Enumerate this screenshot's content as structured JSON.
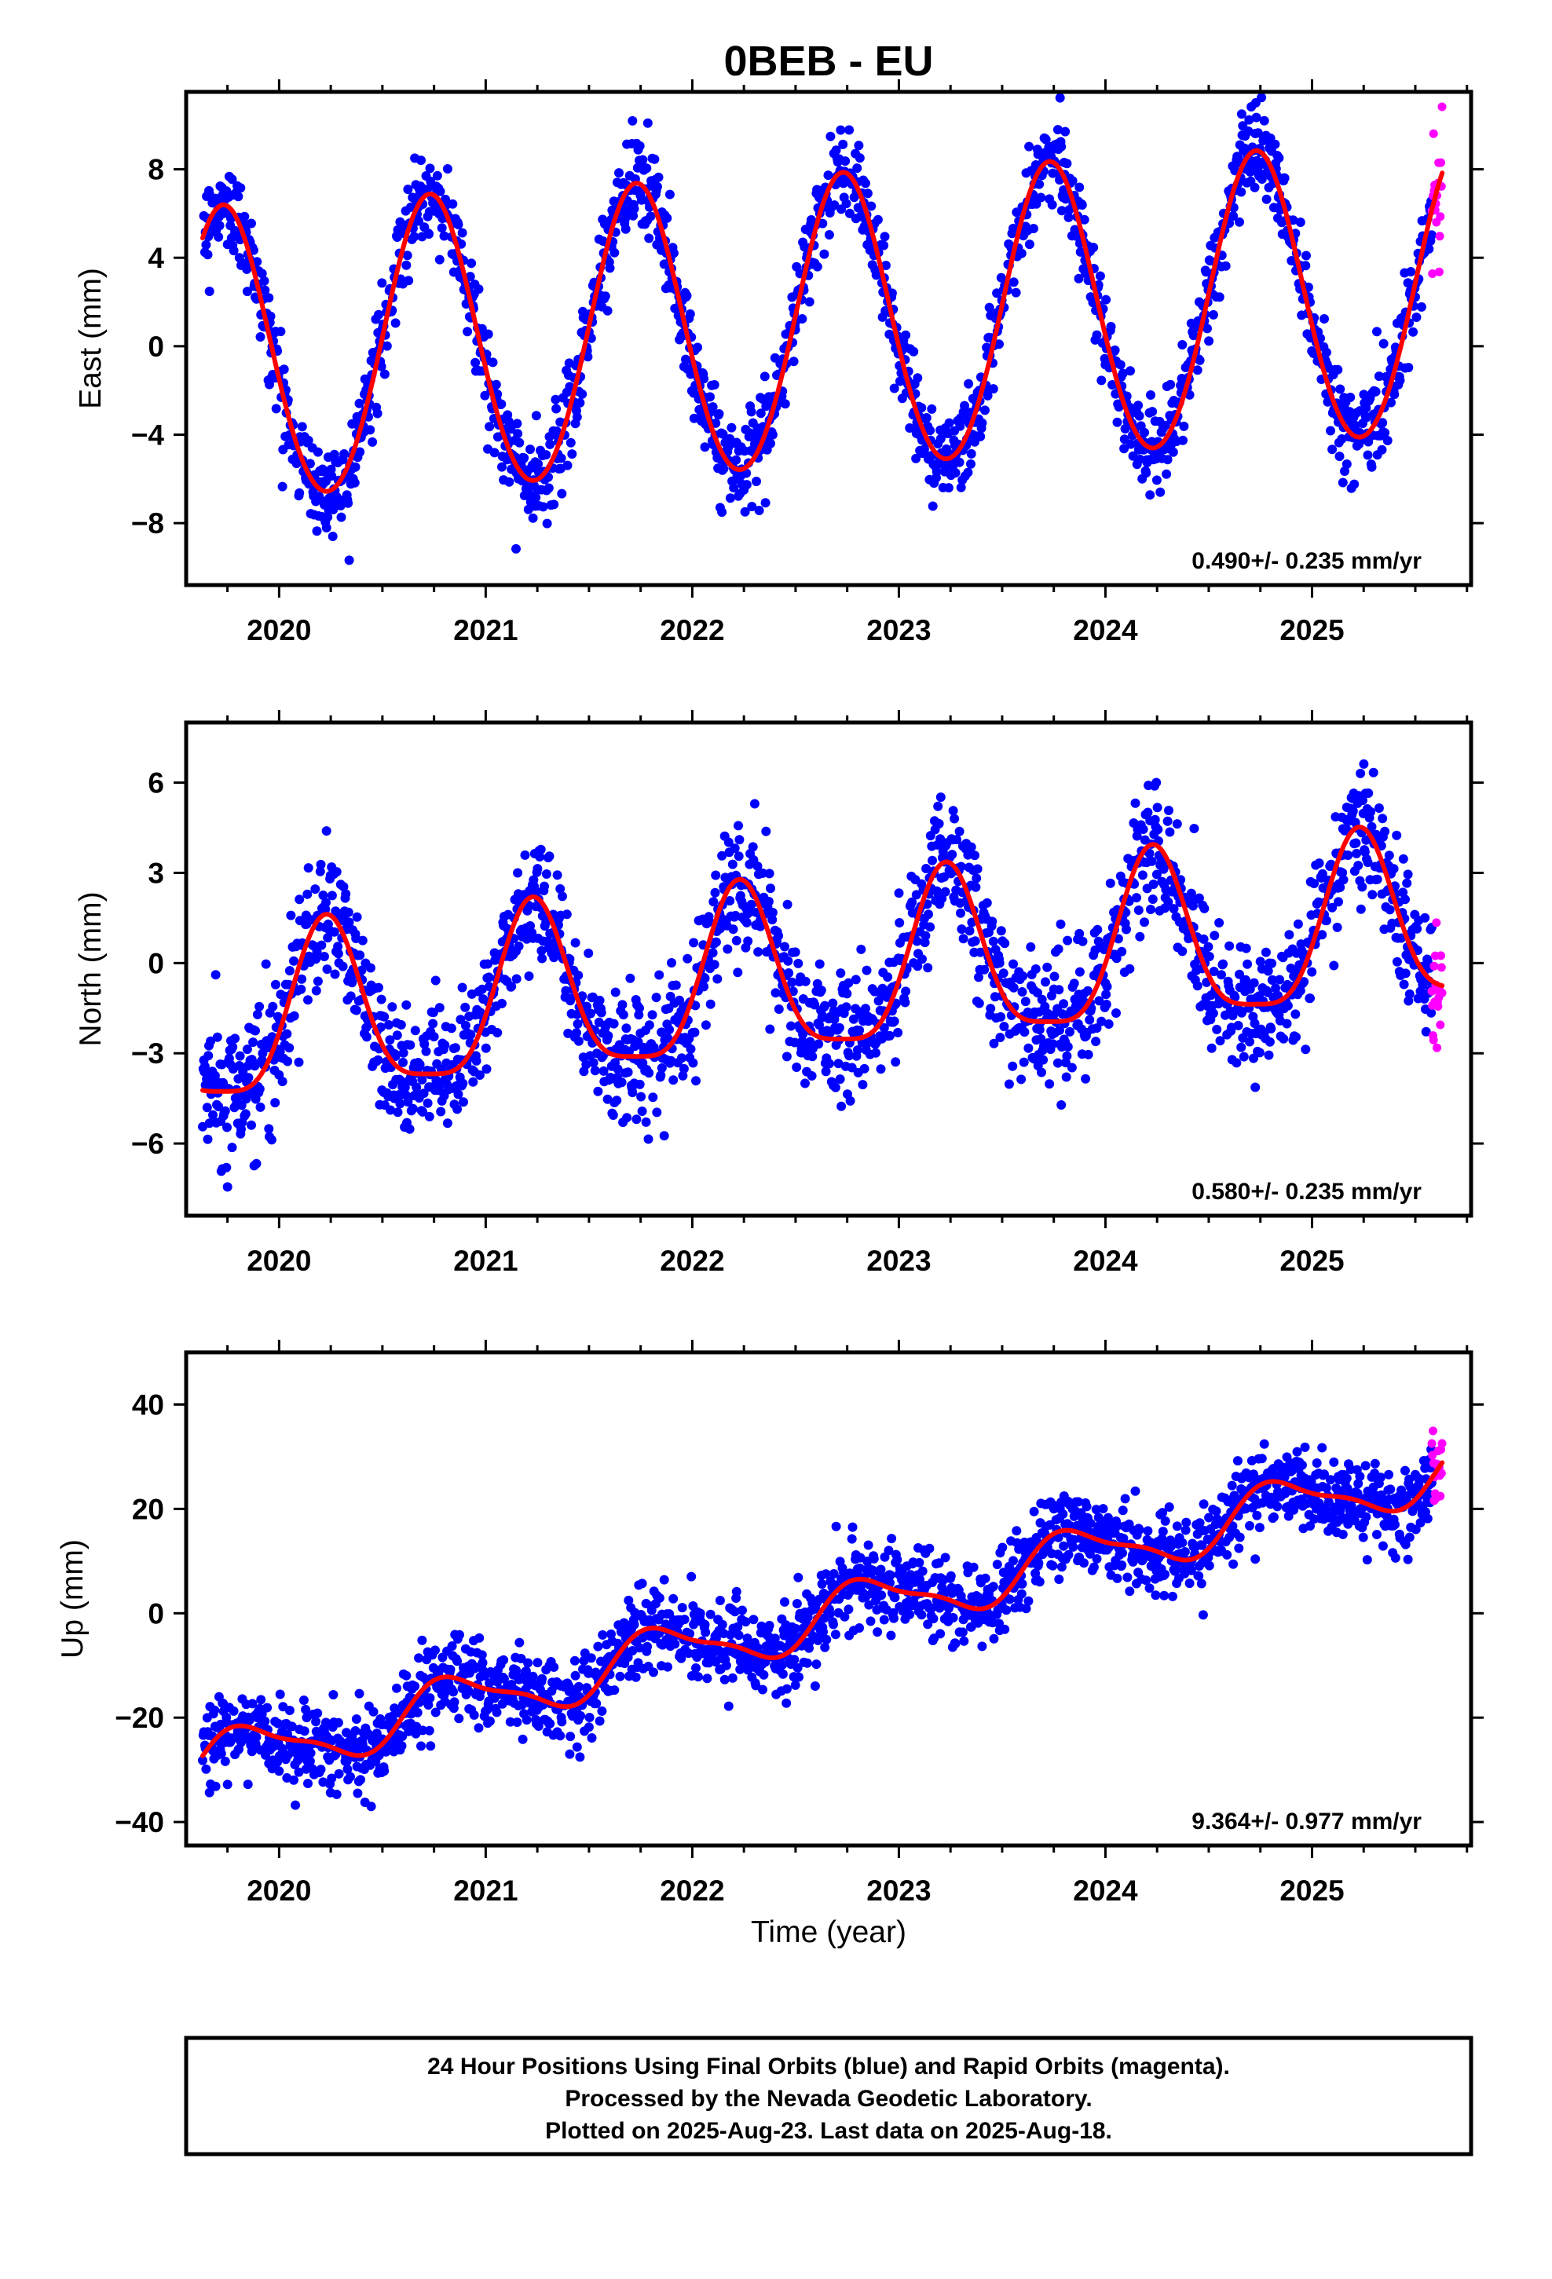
{
  "title": "0BEB - EU",
  "xlabel": "Time (year)",
  "caption": {
    "lines": [
      "24 Hour Positions Using Final Orbits (blue) and Rapid Orbits (magenta).",
      "Processed by the Nevada Geodetic Laboratory.",
      "Plotted on 2025-Aug-23. Last data on 2025-Aug-18."
    ]
  },
  "colors": {
    "final": "#0000ff",
    "rapid": "#ff00ff",
    "fit": "#ff0000",
    "frame": "#000000"
  },
  "chart_data": [
    {
      "type": "scatter",
      "ylabel": "East (mm)",
      "rate_label": "0.490+/- 0.235 mm/yr",
      "xlim": [
        2019.55,
        2025.77
      ],
      "ylim": [
        -10.8,
        11.5
      ],
      "x_ticks": [
        2020,
        2021,
        2022,
        2023,
        2024,
        2025
      ],
      "x_tick_labels": [
        "2020",
        "2021",
        "2022",
        "2023",
        "2024",
        "2025"
      ],
      "y_ticks": [
        -8,
        -4,
        0,
        4,
        8
      ],
      "y_tick_labels": [
        "−8",
        "−4",
        "0",
        "4",
        "8"
      ],
      "model": {
        "offset": 0.9,
        "slope": 0.49,
        "ref": 2022.6,
        "amp1": 6.6,
        "phase1": 2019.48,
        "amp2": 0.3,
        "phase2": 2019.6
      },
      "noise_sd": 1.05,
      "final_range": [
        2019.63,
        2025.58
      ],
      "rapid_range": [
        2025.58,
        2025.63
      ],
      "series": [
        {
          "name": "Final Orbits",
          "color": "#0000ff",
          "role": "final"
        },
        {
          "name": "Rapid Orbits",
          "color": "#ff00ff",
          "role": "rapid"
        },
        {
          "name": "Fit",
          "color": "#ff0000",
          "role": "fit"
        }
      ]
    },
    {
      "type": "scatter",
      "ylabel": "North (mm)",
      "rate_label": "0.580+/- 0.235 mm/yr",
      "xlim": [
        2019.55,
        2025.77
      ],
      "ylim": [
        -8.4,
        8.0
      ],
      "x_ticks": [
        2020,
        2021,
        2022,
        2023,
        2024,
        2025
      ],
      "x_tick_labels": [
        "2020",
        "2021",
        "2022",
        "2023",
        "2024",
        "2025"
      ],
      "y_ticks": [
        -6,
        -3,
        0,
        3,
        6
      ],
      "y_tick_labels": [
        "−6",
        "−3",
        "0",
        "3",
        "6"
      ],
      "model": {
        "offset": -0.5,
        "slope": 0.58,
        "ref": 2022.6,
        "amp1": 2.8,
        "phase1": 2019.98,
        "amp2": 0.7,
        "phase2": 2019.6
      },
      "noise_sd": 1.1,
      "final_range": [
        2019.63,
        2025.58
      ],
      "rapid_range": [
        2025.58,
        2025.63
      ],
      "series": [
        {
          "name": "Final Orbits",
          "color": "#0000ff",
          "role": "final"
        },
        {
          "name": "Rapid Orbits",
          "color": "#ff00ff",
          "role": "rapid"
        },
        {
          "name": "Fit",
          "color": "#ff0000",
          "role": "fit"
        }
      ]
    },
    {
      "type": "scatter",
      "ylabel": "Up (mm)",
      "rate_label": "9.364+/- 0.977 mm/yr",
      "xlim": [
        2019.55,
        2025.77
      ],
      "ylim": [
        -44.5,
        50
      ],
      "x_ticks": [
        2020,
        2021,
        2022,
        2023,
        2024,
        2025
      ],
      "x_tick_labels": [
        "2020",
        "2021",
        "2022",
        "2023",
        "2024",
        "2025"
      ],
      "y_ticks": [
        -40,
        -20,
        0,
        20,
        40
      ],
      "y_tick_labels": [
        "−40",
        "−20",
        "0",
        "20",
        "40"
      ],
      "model": {
        "offset": -1.0,
        "slope": 9.364,
        "ref": 2022.6,
        "amp1": 5.0,
        "phase1": 2019.6,
        "amp2": 1.5,
        "phase2": 2019.6
      },
      "noise_sd": 4.0,
      "final_range": [
        2019.63,
        2025.58
      ],
      "rapid_range": [
        2025.58,
        2025.63
      ],
      "series": [
        {
          "name": "Final Orbits",
          "color": "#0000ff",
          "role": "final"
        },
        {
          "name": "Rapid Orbits",
          "color": "#ff00ff",
          "role": "rapid"
        },
        {
          "name": "Fit",
          "color": "#ff0000",
          "role": "fit"
        }
      ]
    }
  ]
}
